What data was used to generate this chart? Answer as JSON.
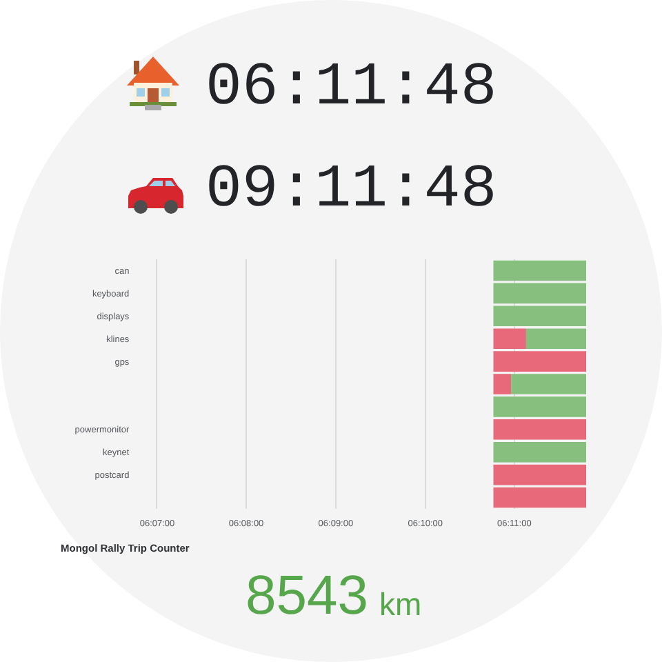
{
  "chart_data": {
    "type": "bar",
    "orientation": "horizontal",
    "categories": [
      "can",
      "keyboard",
      "displays",
      "klines",
      "gps",
      null,
      null,
      "powermonitor",
      "keynet",
      "postcard",
      null
    ],
    "series": [
      {
        "color": "#e8697a",
        "values": [
          null,
          null,
          null,
          0.0061,
          0.0173,
          0.0033,
          null,
          0.0173,
          null,
          0.0173,
          0.0173
        ],
        "base": [
          null,
          null,
          null,
          6.1794,
          6.1794,
          6.1794,
          null,
          6.1794,
          null,
          6.1794,
          6.1794
        ]
      },
      {
        "color": "#87bf7f",
        "values": [
          0.0173,
          0.0173,
          0.0173,
          0.0112,
          null,
          0.014,
          0.0173,
          null,
          0.0173,
          null,
          null
        ],
        "base": [
          6.1794,
          6.1794,
          6.1794,
          6.1855,
          null,
          6.1827,
          6.1794,
          null,
          6.1794,
          null,
          null
        ]
      }
    ],
    "xlim": [
      6.1167,
      6.1967
    ],
    "xticks": [
      {
        "value": 6.1167,
        "label": "06:07:00"
      },
      {
        "value": 6.1333,
        "label": "06:08:00"
      },
      {
        "value": 6.15,
        "label": "06:09:00"
      },
      {
        "value": 6.1667,
        "label": "06:10:00"
      },
      {
        "value": 6.1833,
        "label": "06:11:00"
      }
    ],
    "grid": "x",
    "annotations": [
      "06:11:48",
      "09:11:48",
      "Mongol Rally Trip Counter",
      "8543",
      "km"
    ]
  }
}
